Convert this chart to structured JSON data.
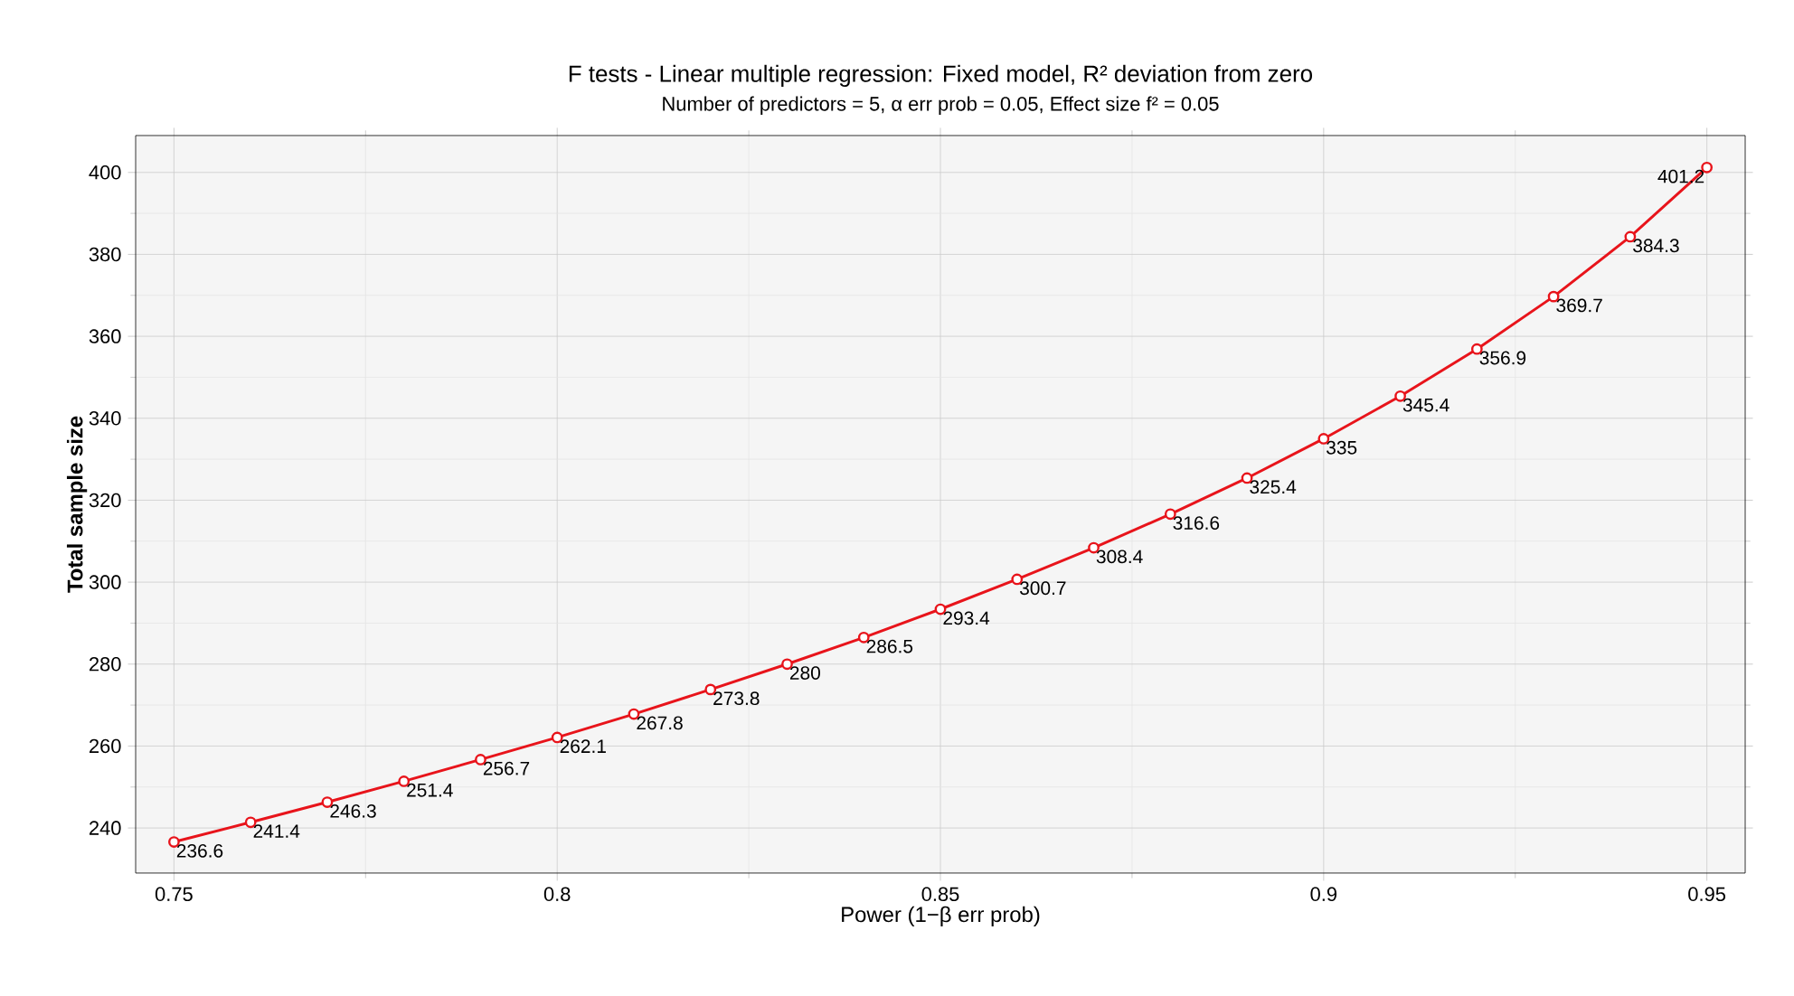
{
  "chart_data": {
    "type": "line",
    "title": "F tests - Linear multiple regression: Fixed model, R² deviation from zero",
    "subtitle": "Number of predictors = 5, α err prob = 0.05, Effect size f² = 0.05",
    "xlabel": "Power (1−β err prob)",
    "ylabel": "Total sample size",
    "x": [
      0.75,
      0.76,
      0.77,
      0.78,
      0.79,
      0.8,
      0.81,
      0.82,
      0.83,
      0.84,
      0.85,
      0.86,
      0.87,
      0.88,
      0.89,
      0.9,
      0.91,
      0.92,
      0.93,
      0.94,
      0.95
    ],
    "series": [
      {
        "color": "#e8141b",
        "values": [
          236.6,
          241.4,
          246.3,
          251.4,
          256.7,
          262.1,
          267.8,
          273.8,
          280,
          286.5,
          293.4,
          300.7,
          308.4,
          316.6,
          325.4,
          335,
          345.4,
          356.9,
          369.7,
          384.3,
          401.2
        ]
      }
    ],
    "xlim": [
      0.745,
      0.955
    ],
    "ylim": [
      229,
      409
    ],
    "xticks": [
      0.75,
      0.8,
      0.85,
      0.9,
      0.95
    ],
    "yticks": [
      240,
      260,
      280,
      300,
      320,
      340,
      360,
      380,
      400
    ],
    "grid": true,
    "marker": "circle",
    "line_style": "solid",
    "data_labels": true
  }
}
